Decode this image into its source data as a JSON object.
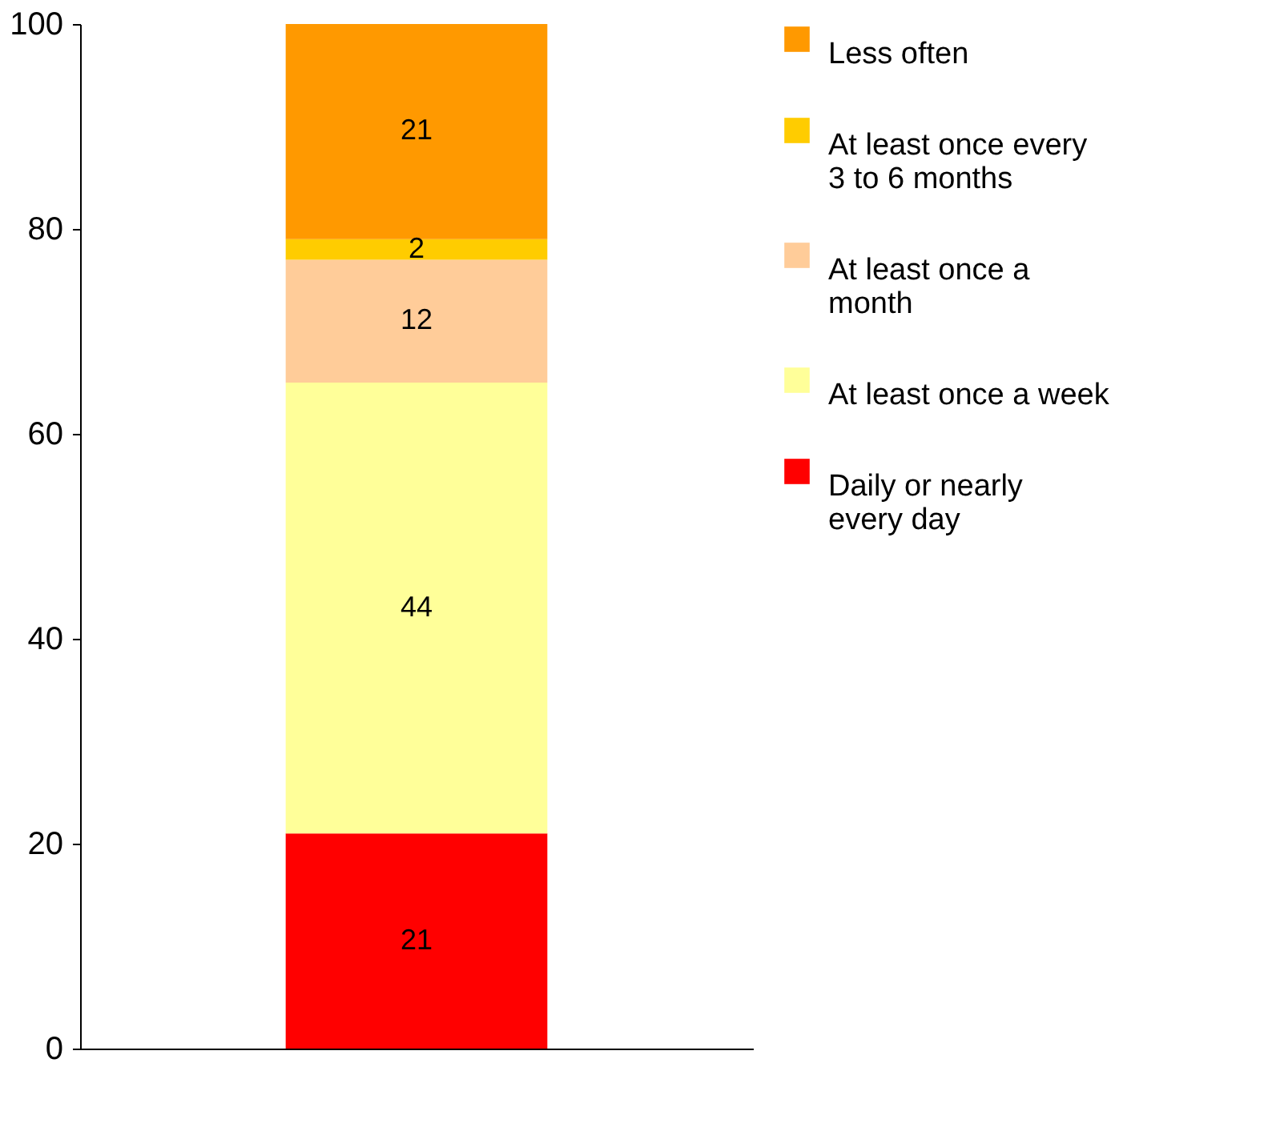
{
  "chart_data": {
    "type": "bar",
    "stacked": true,
    "categories": [
      null
    ],
    "series": [
      {
        "name": "Daily or nearly every day",
        "color": "#ff0000",
        "values": [
          21
        ]
      },
      {
        "name": "At least once a week",
        "color": "#ffff99",
        "values": [
          44
        ]
      },
      {
        "name": "At least once a month",
        "color": "#ffcc99",
        "values": [
          12
        ]
      },
      {
        "name": "At least once every 3 to 6 months",
        "color": "#ffcc00",
        "values": [
          2
        ]
      },
      {
        "name": "Less often",
        "color": "#ff9900",
        "values": [
          21
        ]
      }
    ],
    "ylim": [
      0,
      100
    ],
    "yticks": [
      0,
      20,
      40,
      60,
      80,
      100
    ],
    "grid": false,
    "legend": "right",
    "data_labels": true,
    "tick_labels": "y"
  }
}
